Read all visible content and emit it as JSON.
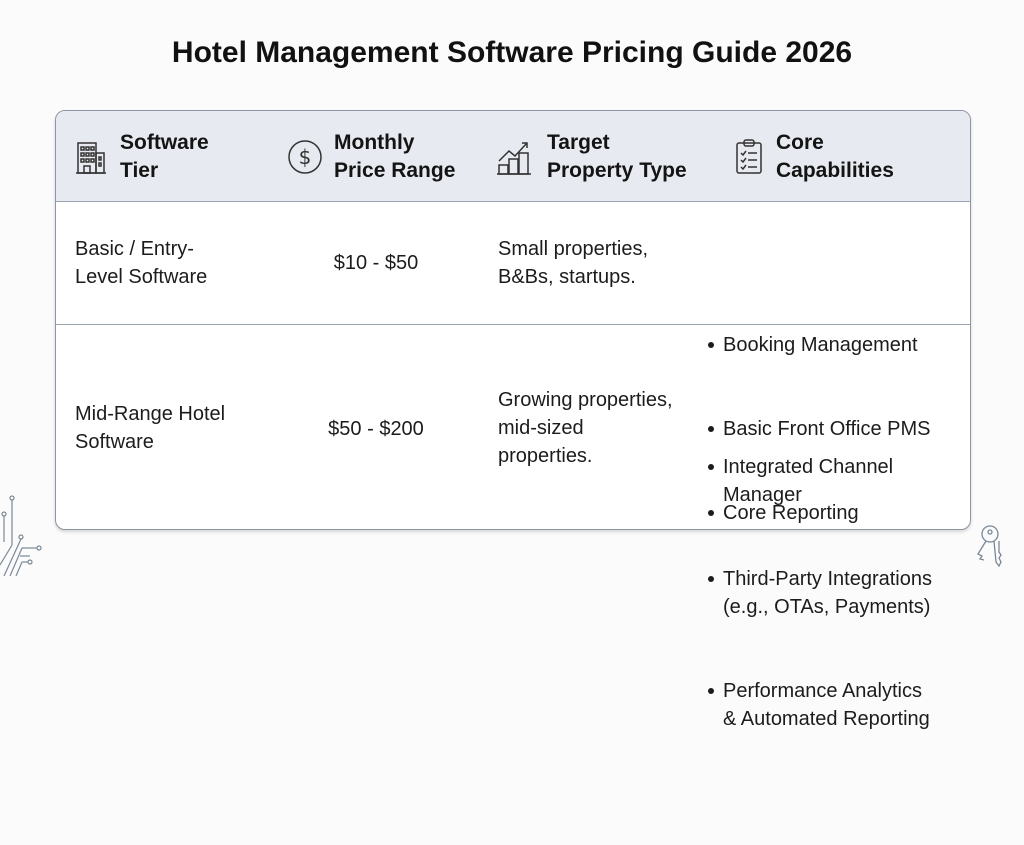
{
  "title": "Hotel Management Software Pricing Guide 2026",
  "columns": [
    {
      "label": "Software\nTier",
      "icon": "building-icon"
    },
    {
      "label": "Monthly\nPrice Range",
      "icon": "dollar-circle-icon"
    },
    {
      "label": "Target\nProperty Type",
      "icon": "growth-chart-buildings-icon"
    },
    {
      "label": "Core\nCapabilities",
      "icon": "clipboard-checklist-icon"
    }
  ],
  "rows": [
    {
      "tier": "Basic / Entry-\nLevel Software",
      "price": "$10 - $50",
      "target": "Small properties,\nB&Bs, startups.",
      "capabilities": [
        "Booking Management",
        "Basic Front Office PMS",
        "Core Reporting"
      ]
    },
    {
      "tier": "Mid-Range Hotel\nSoftware",
      "price": "$50 - $200",
      "target": "Growing properties,\nmid-sized\nproperties.",
      "capabilities": [
        "Integrated Channel\nManager",
        "Third-Party Integrations\n(e.g., OTAs, Payments)",
        "Performance Analytics\n& Automated Reporting"
      ]
    }
  ]
}
